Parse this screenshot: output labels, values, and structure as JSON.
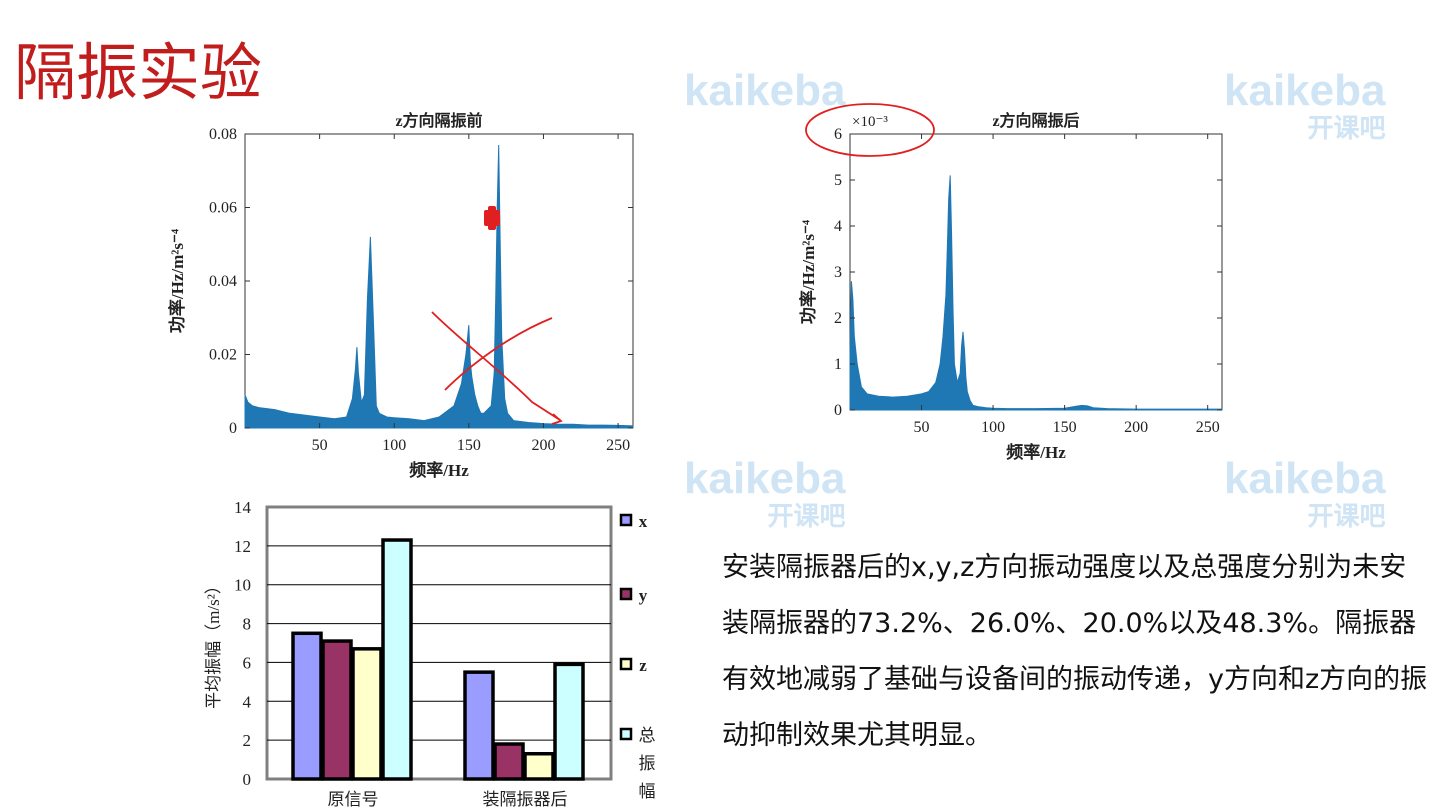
{
  "page": {
    "title": "隔振实验"
  },
  "watermark": {
    "brand": "kaikeba",
    "cn": "开课吧"
  },
  "description": "安装隔振器后的x,y,z方向振动强度以及总强度分别为未安装隔振器的73.2%、26.0%、20.0%以及48.3%。隔振器有效地减弱了基础与设备间的振动传递，y方向和z方向的振动抑制效果尤其明显。",
  "chart_data": [
    {
      "type": "line",
      "title": "z方向隔振前",
      "xlabel": "频率/Hz",
      "ylabel": "功率/Hz/m²s⁻⁴",
      "xlim": [
        0,
        260
      ],
      "ylim": [
        0,
        0.08
      ],
      "xticks": [
        "50",
        "100",
        "150",
        "200",
        "250"
      ],
      "yticks": [
        "0",
        "0.02",
        "0.04",
        "0.06",
        "0.08"
      ],
      "color": "#1f77b4",
      "x": [
        0,
        2,
        5,
        10,
        20,
        30,
        40,
        50,
        60,
        68,
        72,
        74,
        75,
        76,
        78,
        80,
        82,
        84,
        86,
        88,
        90,
        95,
        100,
        110,
        120,
        130,
        140,
        145,
        148,
        150,
        151,
        152,
        154,
        156,
        158,
        160,
        165,
        167,
        168,
        169,
        170,
        171,
        172,
        174,
        176,
        180,
        190,
        200,
        210,
        220,
        230,
        240,
        250,
        260
      ],
      "y": [
        0.009,
        0.007,
        0.006,
        0.0055,
        0.005,
        0.004,
        0.0035,
        0.003,
        0.0025,
        0.003,
        0.008,
        0.016,
        0.022,
        0.015,
        0.007,
        0.009,
        0.035,
        0.052,
        0.03,
        0.006,
        0.004,
        0.003,
        0.0028,
        0.0025,
        0.002,
        0.003,
        0.006,
        0.012,
        0.02,
        0.028,
        0.018,
        0.014,
        0.009,
        0.006,
        0.004,
        0.004,
        0.006,
        0.015,
        0.035,
        0.06,
        0.077,
        0.05,
        0.025,
        0.008,
        0.004,
        0.002,
        0.0015,
        0.0012,
        0.001,
        0.001,
        0.0008,
        0.0008,
        0.0007,
        0.0006
      ]
    },
    {
      "type": "line",
      "title": "z方向隔振后",
      "xlabel": "频率/Hz",
      "ylabel": "功率/Hz/m²s⁻⁴",
      "scale_label": "×10⁻³",
      "xlim": [
        0,
        260
      ],
      "ylim": [
        0,
        6
      ],
      "xticks": [
        "50",
        "100",
        "150",
        "200",
        "250"
      ],
      "yticks": [
        "0",
        "1",
        "2",
        "3",
        "4",
        "5",
        "6"
      ],
      "color": "#1f77b4",
      "x": [
        0,
        1,
        2,
        3,
        5,
        8,
        12,
        20,
        30,
        40,
        50,
        55,
        60,
        63,
        65,
        67,
        68,
        69,
        70,
        71,
        72,
        73,
        75,
        77,
        78,
        79,
        80,
        81,
        82,
        84,
        86,
        90,
        95,
        100,
        110,
        130,
        150,
        158,
        162,
        166,
        170,
        180,
        200,
        220,
        240,
        260
      ],
      "y": [
        1.2,
        2.8,
        2.4,
        1.6,
        1.0,
        0.5,
        0.35,
        0.3,
        0.28,
        0.3,
        0.35,
        0.4,
        0.6,
        1.0,
        1.6,
        2.5,
        3.5,
        4.6,
        5.1,
        3.8,
        2.2,
        1.0,
        0.6,
        0.8,
        1.4,
        1.7,
        1.3,
        0.7,
        0.4,
        0.2,
        0.1,
        0.07,
        0.05,
        0.04,
        0.03,
        0.03,
        0.04,
        0.08,
        0.1,
        0.09,
        0.05,
        0.03,
        0.02,
        0.02,
        0.02,
        0.02
      ]
    },
    {
      "type": "bar",
      "ylabel": "平均振幅（m/s²）",
      "ylim": [
        0,
        14
      ],
      "yticks": [
        "0",
        "2",
        "4",
        "6",
        "8",
        "10",
        "12",
        "14"
      ],
      "categories": [
        "原信号",
        "装隔振器后"
      ],
      "series": [
        {
          "name": "x",
          "color": "#9a9cff",
          "values": [
            7.5,
            5.5
          ]
        },
        {
          "name": "y",
          "color": "#993366",
          "values": [
            7.1,
            1.8
          ]
        },
        {
          "name": "z",
          "color": "#ffffcc",
          "values": [
            6.7,
            1.3
          ]
        },
        {
          "name": "总振幅",
          "color": "#ccffff",
          "values": [
            12.3,
            5.9
          ]
        }
      ]
    }
  ]
}
